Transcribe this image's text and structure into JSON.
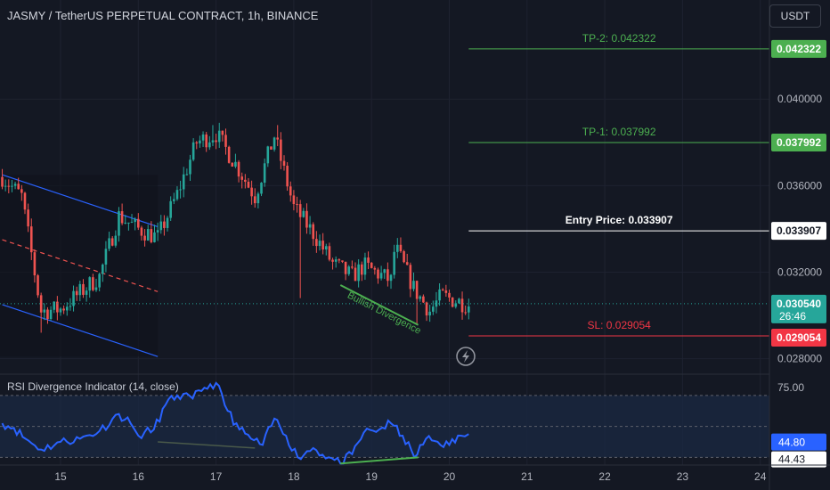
{
  "header": {
    "title": "JASMY / TetherUS PERPETUAL CONTRACT, 1h, BINANCE",
    "currency": "USDT"
  },
  "colors": {
    "background": "#141823",
    "up": "#26a69a",
    "down": "#ef5350",
    "tp": "#4caf50",
    "sl": "#f23645",
    "entry": "#ffffff",
    "channel": "#2962ff",
    "rsi_line": "#2962ff",
    "divergence": "#4caf50"
  },
  "annotations": {
    "tp2": "TP-2: 0.042322",
    "tp1": "TP-1: 0.037992",
    "entry": "Entry Price: 0.033907",
    "sl": "SL: 0.029054",
    "bullish_divergence": "Bullish Divergence"
  },
  "price_badges": {
    "tp2": "0.042322",
    "tp1": "0.037992",
    "entry": "0.033907",
    "last": "0.030540",
    "countdown": "26:46",
    "sl": "0.029054"
  },
  "chart_data": {
    "type": "candlestick",
    "symbol": "JASMY / TetherUS PERPETUAL CONTRACT",
    "interval": "1h",
    "exchange": "BINANCE",
    "y_ticks": [
      "0.040000",
      "0.036000",
      "0.032000",
      "0.028000"
    ],
    "y_tick_values": [
      0.04,
      0.036,
      0.032,
      0.028
    ],
    "ylim": [
      0.0272,
      0.0445
    ],
    "x_ticks": [
      "15",
      "16",
      "17",
      "18",
      "19",
      "20",
      "21",
      "22",
      "23",
      "24"
    ],
    "x_tick_days": [
      15,
      16,
      17,
      18,
      19,
      20,
      21,
      22,
      23,
      24
    ],
    "xlim_days": [
      14.25,
      24.3
    ],
    "levels": {
      "tp2": 0.042322,
      "tp1": 0.037992,
      "entry": 0.033907,
      "last": 0.03054,
      "sl": 0.029054
    },
    "close_anchors": [
      [
        14.25,
        0.0364
      ],
      [
        14.5,
        0.0355
      ],
      [
        14.75,
        0.0302
      ],
      [
        15.0,
        0.0303
      ],
      [
        15.5,
        0.0318
      ],
      [
        15.75,
        0.0346
      ],
      [
        16.0,
        0.034
      ],
      [
        16.25,
        0.0336
      ],
      [
        16.5,
        0.0356
      ],
      [
        16.75,
        0.038
      ],
      [
        17.0,
        0.0384
      ],
      [
        17.25,
        0.037
      ],
      [
        17.5,
        0.0355
      ],
      [
        17.75,
        0.0383
      ],
      [
        18.0,
        0.035
      ],
      [
        18.25,
        0.0338
      ],
      [
        18.5,
        0.0324
      ],
      [
        18.75,
        0.0318
      ],
      [
        18.9,
        0.0323
      ],
      [
        19.25,
        0.0316
      ],
      [
        19.3,
        0.0332
      ],
      [
        19.55,
        0.0312
      ],
      [
        19.75,
        0.0302
      ],
      [
        19.9,
        0.0309
      ],
      [
        20.25,
        0.0305
      ]
    ],
    "rsi": {
      "name": "RSI Divergence Indicator (14, close)",
      "ticks": [
        "75.00"
      ],
      "tick_values": [
        75.0
      ],
      "band_upper": 70,
      "band_lower": 30,
      "mid": 50,
      "ylim": [
        25,
        82
      ],
      "current": "44.80",
      "current_value": 44.8,
      "prev": "44.43",
      "prev_value": 44.43,
      "points": [
        [
          14.25,
          52
        ],
        [
          14.4,
          49
        ],
        [
          14.55,
          42
        ],
        [
          14.75,
          35
        ],
        [
          15.0,
          40
        ],
        [
          15.25,
          42
        ],
        [
          15.5,
          47
        ],
        [
          15.75,
          58
        ],
        [
          15.9,
          52
        ],
        [
          16.0,
          44
        ],
        [
          16.2,
          48
        ],
        [
          16.35,
          64
        ],
        [
          16.5,
          70
        ],
        [
          16.7,
          68
        ],
        [
          16.85,
          75
        ],
        [
          17.0,
          78
        ],
        [
          17.15,
          60
        ],
        [
          17.3,
          48
        ],
        [
          17.45,
          42
        ],
        [
          17.6,
          38
        ],
        [
          17.75,
          55
        ],
        [
          17.9,
          44
        ],
        [
          18.05,
          30
        ],
        [
          18.25,
          36
        ],
        [
          18.45,
          30
        ],
        [
          18.6,
          26
        ],
        [
          18.75,
          32
        ],
        [
          18.9,
          46
        ],
        [
          19.1,
          48
        ],
        [
          19.25,
          52
        ],
        [
          19.4,
          44
        ],
        [
          19.55,
          30
        ],
        [
          19.7,
          42
        ],
        [
          19.85,
          40
        ],
        [
          20.0,
          38
        ],
        [
          20.15,
          44
        ],
        [
          20.25,
          45
        ]
      ]
    },
    "drawings": {
      "channel_upper": [
        [
          14.25,
          0.0365
        ],
        [
          16.25,
          0.0341
        ]
      ],
      "channel_lower": [
        [
          14.25,
          0.0305
        ],
        [
          16.25,
          0.0281
        ]
      ],
      "channel_mid": [
        [
          14.25,
          0.0335
        ],
        [
          16.25,
          0.0311
        ]
      ],
      "divergence_price": [
        [
          18.6,
          0.0314
        ],
        [
          19.6,
          0.0303
        ]
      ],
      "divergence_rsi_green": [
        [
          18.6,
          26
        ],
        [
          19.6,
          30
        ]
      ],
      "divergence_rsi_grey": [
        [
          16.25,
          40
        ],
        [
          17.5,
          36
        ]
      ],
      "levels_start_day": 20.25
    }
  }
}
